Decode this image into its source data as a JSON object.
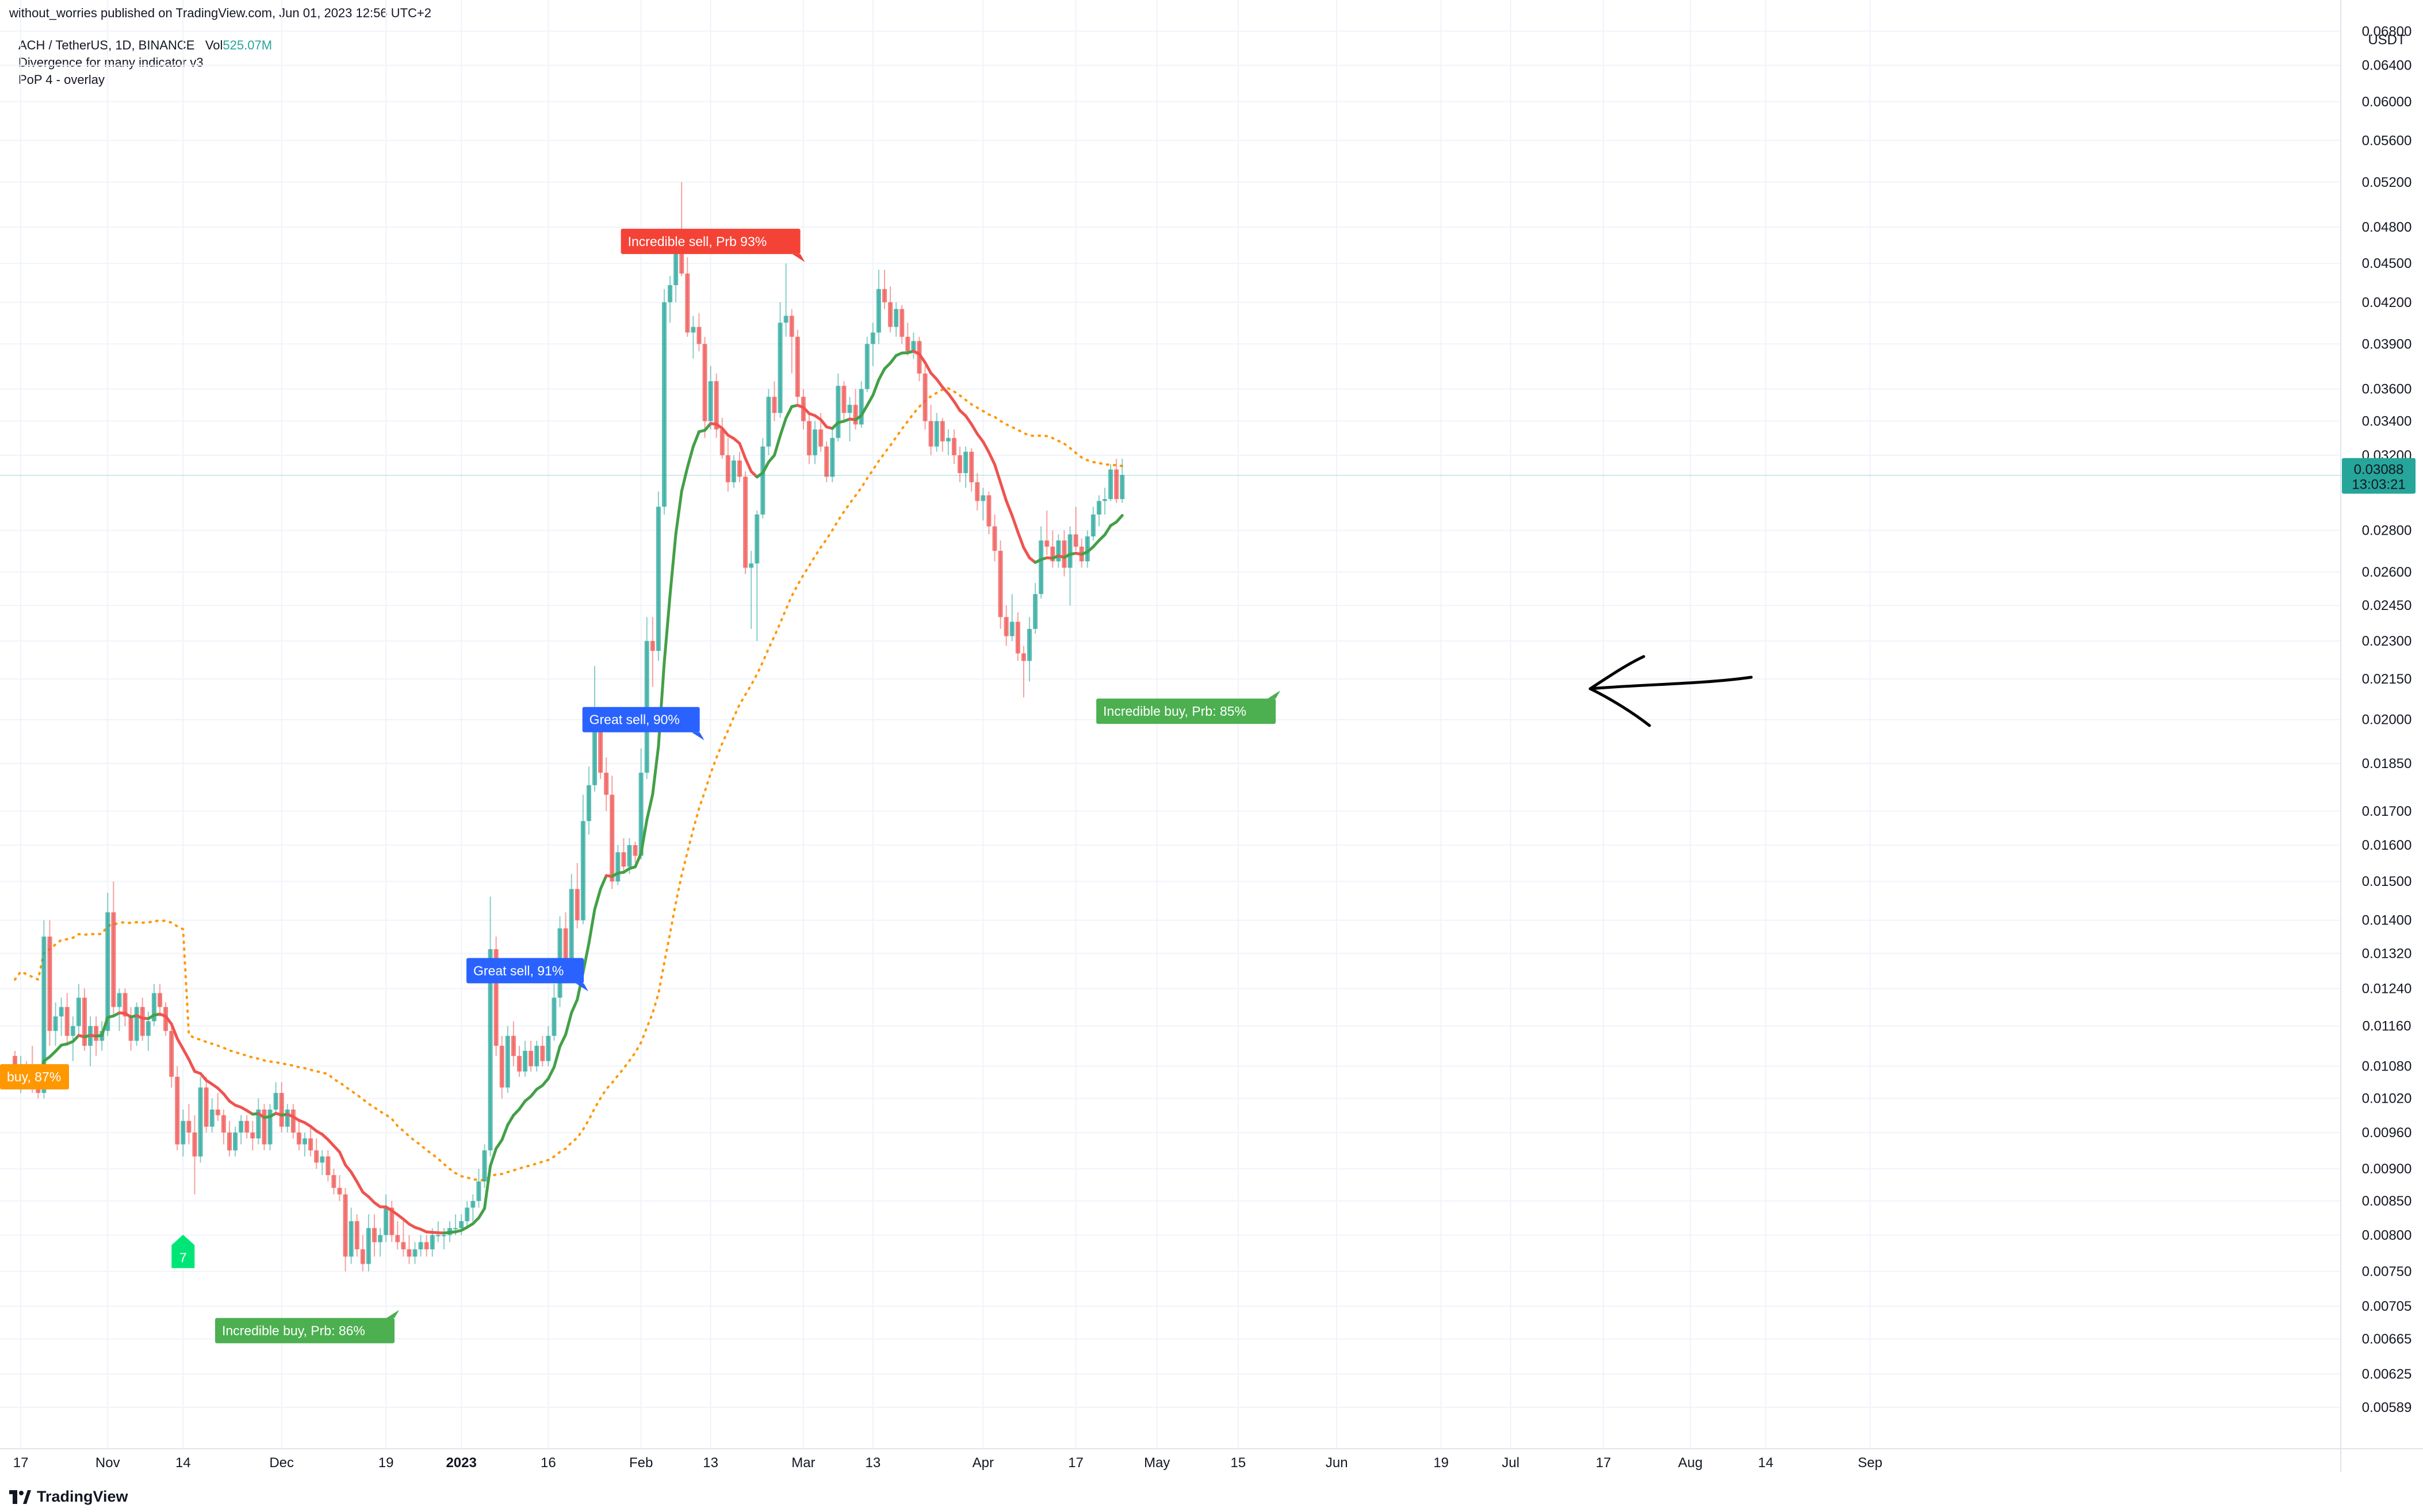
{
  "publisher_line": "without_worries published on TradingView.com, Jun 01, 2023 12:56 UTC+2",
  "legend": {
    "symbol": "ACH / TetherUS, 1D, BINANCE",
    "vol_label": "Vol",
    "vol_value": "525.07M",
    "indicator1": "Divergence for many indicator v3",
    "indicator2": "PoP 4 - overlay"
  },
  "footer": {
    "brand": "TradingView"
  },
  "colors": {
    "up": "#26a69a",
    "down": "#ef5350",
    "ema_up": "#43a047",
    "ema_down": "#ef5350",
    "sma": "#ff9800",
    "grid": "#f0f3fa",
    "axis_text": "#131722",
    "label_red": "#f44336",
    "label_blue": "#2962ff",
    "label_green": "#4caf50",
    "label_orange": "#ff9800"
  },
  "chart_data": {
    "type": "candlestick",
    "currency": "USDT",
    "scale": "log",
    "ylim": [
      0.0057,
      0.069
    ],
    "y_ticks": [
      "0.06800",
      "0.06400",
      "0.06000",
      "0.05600",
      "0.05200",
      "0.04800",
      "0.04500",
      "0.04200",
      "0.03900",
      "0.03600",
      "0.03400",
      "0.03200",
      "0.02800",
      "0.02600",
      "0.02450",
      "0.02300",
      "0.02150",
      "0.02000",
      "0.01850",
      "0.01700",
      "0.01600",
      "0.01500",
      "0.01400",
      "0.01320",
      "0.01240",
      "0.01160",
      "0.01080",
      "0.01020",
      "0.00960",
      "0.00900",
      "0.00850",
      "0.00800",
      "0.00750",
      "0.00705",
      "0.00665",
      "0.00625",
      "0.00589"
    ],
    "x_ticks": [
      {
        "label": "17",
        "day": 1
      },
      {
        "label": "Nov",
        "day": 16
      },
      {
        "label": "14",
        "day": 29
      },
      {
        "label": "Dec",
        "day": 46
      },
      {
        "label": "19",
        "day": 64
      },
      {
        "label": "2023",
        "day": 77,
        "bold": true
      },
      {
        "label": "16",
        "day": 92
      },
      {
        "label": "Feb",
        "day": 108
      },
      {
        "label": "13",
        "day": 120
      },
      {
        "label": "Mar",
        "day": 136
      },
      {
        "label": "13",
        "day": 148
      },
      {
        "label": "Apr",
        "day": 167
      },
      {
        "label": "17",
        "day": 183
      },
      {
        "label": "May",
        "day": 197
      },
      {
        "label": "15",
        "day": 211
      },
      {
        "label": "Jun",
        "day": 228
      },
      {
        "label": "19",
        "day": 246
      },
      {
        "label": "Jul",
        "day": 258
      },
      {
        "label": "17",
        "day": 274
      },
      {
        "label": "Aug",
        "day": 289
      },
      {
        "label": "14",
        "day": 302
      },
      {
        "label": "Sep",
        "day": 320
      }
    ],
    "price_tag": {
      "price": 0.03088,
      "label": "0.03088",
      "countdown": "13:03:21"
    },
    "candles": [
      [
        0.011,
        0.0111,
        0.0104,
        0.0105
      ],
      [
        0.0105,
        0.011,
        0.0103,
        0.0108
      ],
      [
        0.0108,
        0.0109,
        0.0104,
        0.0105
      ],
      [
        0.0105,
        0.0112,
        0.0103,
        0.0104
      ],
      [
        0.0104,
        0.0106,
        0.0102,
        0.0103
      ],
      [
        0.0103,
        0.014,
        0.0102,
        0.0136
      ],
      [
        0.0136,
        0.014,
        0.0112,
        0.0115
      ],
      [
        0.0115,
        0.0121,
        0.0112,
        0.0118
      ],
      [
        0.0118,
        0.0122,
        0.0114,
        0.012
      ],
      [
        0.012,
        0.0123,
        0.0112,
        0.0114
      ],
      [
        0.0114,
        0.0118,
        0.0109,
        0.0116
      ],
      [
        0.0116,
        0.0125,
        0.0114,
        0.0122
      ],
      [
        0.0122,
        0.0124,
        0.0111,
        0.0112
      ],
      [
        0.0112,
        0.0118,
        0.0108,
        0.0116
      ],
      [
        0.0116,
        0.0118,
        0.011,
        0.0113
      ],
      [
        0.0113,
        0.0117,
        0.0111,
        0.0115
      ],
      [
        0.0115,
        0.0147,
        0.0114,
        0.0142
      ],
      [
        0.0142,
        0.015,
        0.0118,
        0.012
      ],
      [
        0.012,
        0.0124,
        0.0115,
        0.0123
      ],
      [
        0.0123,
        0.0124,
        0.0116,
        0.0118
      ],
      [
        0.0118,
        0.012,
        0.0111,
        0.0113
      ],
      [
        0.0113,
        0.0121,
        0.0112,
        0.012
      ],
      [
        0.012,
        0.0122,
        0.0113,
        0.0114
      ],
      [
        0.0114,
        0.0119,
        0.0111,
        0.0117
      ],
      [
        0.0117,
        0.0125,
        0.0116,
        0.0123
      ],
      [
        0.0123,
        0.0125,
        0.0118,
        0.012
      ],
      [
        0.012,
        0.0121,
        0.0114,
        0.0115
      ],
      [
        0.0115,
        0.0116,
        0.0104,
        0.0106
      ],
      [
        0.0106,
        0.0108,
        0.0093,
        0.0094
      ],
      [
        0.0094,
        0.01,
        0.0092,
        0.0098
      ],
      [
        0.0098,
        0.0101,
        0.0094,
        0.0096
      ],
      [
        0.0096,
        0.0099,
        0.0086,
        0.0092
      ],
      [
        0.0092,
        0.0106,
        0.0091,
        0.0104
      ],
      [
        0.0104,
        0.0106,
        0.0096,
        0.0097
      ],
      [
        0.0097,
        0.0102,
        0.0096,
        0.01
      ],
      [
        0.01,
        0.0103,
        0.0098,
        0.0099
      ],
      [
        0.0099,
        0.01,
        0.0094,
        0.0096
      ],
      [
        0.0096,
        0.0098,
        0.0092,
        0.0093
      ],
      [
        0.0093,
        0.0097,
        0.0092,
        0.0096
      ],
      [
        0.0096,
        0.0099,
        0.0094,
        0.0098
      ],
      [
        0.0098,
        0.0099,
        0.0095,
        0.0096
      ],
      [
        0.0096,
        0.0098,
        0.0093,
        0.0095
      ],
      [
        0.0095,
        0.0102,
        0.0094,
        0.01
      ],
      [
        0.01,
        0.0101,
        0.0093,
        0.0094
      ],
      [
        0.0094,
        0.0101,
        0.0093,
        0.01
      ],
      [
        0.01,
        0.0105,
        0.0099,
        0.0103
      ],
      [
        0.0103,
        0.0105,
        0.0096,
        0.0097
      ],
      [
        0.0097,
        0.0101,
        0.0096,
        0.01
      ],
      [
        0.01,
        0.0101,
        0.0095,
        0.0096
      ],
      [
        0.0096,
        0.0098,
        0.0093,
        0.0094
      ],
      [
        0.0094,
        0.0096,
        0.0092,
        0.0095
      ],
      [
        0.0095,
        0.0097,
        0.0092,
        0.0093
      ],
      [
        0.0093,
        0.0095,
        0.009,
        0.0091
      ],
      [
        0.0091,
        0.0093,
        0.0089,
        0.0092
      ],
      [
        0.0092,
        0.0093,
        0.0088,
        0.0089
      ],
      [
        0.0089,
        0.009,
        0.0086,
        0.0087
      ],
      [
        0.0087,
        0.0089,
        0.0085,
        0.0086
      ],
      [
        0.0086,
        0.0087,
        0.0075,
        0.0077
      ],
      [
        0.0077,
        0.0084,
        0.0076,
        0.0082
      ],
      [
        0.0082,
        0.0083,
        0.0077,
        0.0078
      ],
      [
        0.0078,
        0.008,
        0.0075,
        0.0076
      ],
      [
        0.0076,
        0.0083,
        0.0075,
        0.0081
      ],
      [
        0.0081,
        0.0083,
        0.0077,
        0.0079
      ],
      [
        0.0079,
        0.0081,
        0.0077,
        0.008
      ],
      [
        0.008,
        0.0086,
        0.0079,
        0.0084
      ],
      [
        0.0084,
        0.0085,
        0.0079,
        0.008
      ],
      [
        0.008,
        0.0082,
        0.0078,
        0.0079
      ],
      [
        0.0079,
        0.0082,
        0.0077,
        0.0078
      ],
      [
        0.0078,
        0.008,
        0.0076,
        0.0077
      ],
      [
        0.0077,
        0.0079,
        0.0076,
        0.0078
      ],
      [
        0.0078,
        0.008,
        0.0077,
        0.0079
      ],
      [
        0.0079,
        0.008,
        0.0077,
        0.0078
      ],
      [
        0.0078,
        0.0081,
        0.0077,
        0.008
      ],
      [
        0.008,
        0.0082,
        0.0079,
        0.008
      ],
      [
        0.008,
        0.0081,
        0.0078,
        0.008
      ],
      [
        0.008,
        0.0082,
        0.0079,
        0.0081
      ],
      [
        0.0081,
        0.0083,
        0.008,
        0.0081
      ],
      [
        0.0081,
        0.0083,
        0.008,
        0.0082
      ],
      [
        0.0082,
        0.0085,
        0.0081,
        0.0084
      ],
      [
        0.0084,
        0.0086,
        0.0082,
        0.0085
      ],
      [
        0.0085,
        0.009,
        0.0084,
        0.0088
      ],
      [
        0.0088,
        0.0094,
        0.0087,
        0.0093
      ],
      [
        0.0093,
        0.0146,
        0.0092,
        0.0133
      ],
      [
        0.0133,
        0.0136,
        0.011,
        0.0112
      ],
      [
        0.0112,
        0.0114,
        0.0102,
        0.0104
      ],
      [
        0.0104,
        0.0116,
        0.0103,
        0.0114
      ],
      [
        0.0114,
        0.0117,
        0.0108,
        0.011
      ],
      [
        0.011,
        0.0112,
        0.0106,
        0.0107
      ],
      [
        0.0107,
        0.0113,
        0.0106,
        0.0111
      ],
      [
        0.0111,
        0.0113,
        0.0107,
        0.0108
      ],
      [
        0.0108,
        0.0113,
        0.0107,
        0.0112
      ],
      [
        0.0112,
        0.0114,
        0.0108,
        0.0109
      ],
      [
        0.0109,
        0.0116,
        0.0108,
        0.0114
      ],
      [
        0.0114,
        0.0125,
        0.0113,
        0.0122
      ],
      [
        0.0122,
        0.0141,
        0.012,
        0.0138
      ],
      [
        0.0138,
        0.0142,
        0.0127,
        0.013
      ],
      [
        0.013,
        0.0152,
        0.0129,
        0.0148
      ],
      [
        0.0148,
        0.0155,
        0.0138,
        0.014
      ],
      [
        0.014,
        0.0175,
        0.0139,
        0.0167
      ],
      [
        0.0167,
        0.0184,
        0.0163,
        0.0178
      ],
      [
        0.0178,
        0.022,
        0.0176,
        0.0197
      ],
      [
        0.0197,
        0.0199,
        0.018,
        0.0182
      ],
      [
        0.0182,
        0.0187,
        0.017,
        0.0175
      ],
      [
        0.0175,
        0.0181,
        0.0148,
        0.015
      ],
      [
        0.015,
        0.016,
        0.0149,
        0.0158
      ],
      [
        0.0158,
        0.0162,
        0.0152,
        0.0154
      ],
      [
        0.0154,
        0.0162,
        0.0152,
        0.016
      ],
      [
        0.016,
        0.0161,
        0.0155,
        0.0157
      ],
      [
        0.0157,
        0.019,
        0.0156,
        0.0182
      ],
      [
        0.0182,
        0.024,
        0.018,
        0.023
      ],
      [
        0.023,
        0.024,
        0.0212,
        0.0226
      ],
      [
        0.0226,
        0.03,
        0.0222,
        0.0292
      ],
      [
        0.0292,
        0.043,
        0.0288,
        0.042
      ],
      [
        0.042,
        0.044,
        0.0405,
        0.0433
      ],
      [
        0.0433,
        0.047,
        0.042,
        0.0465
      ],
      [
        0.0465,
        0.052,
        0.044,
        0.0442
      ],
      [
        0.0442,
        0.0455,
        0.0395,
        0.0398
      ],
      [
        0.0398,
        0.041,
        0.038,
        0.0402
      ],
      [
        0.0402,
        0.0412,
        0.0385,
        0.039
      ],
      [
        0.039,
        0.0395,
        0.033,
        0.034
      ],
      [
        0.034,
        0.0375,
        0.0335,
        0.0365
      ],
      [
        0.0365,
        0.037,
        0.033,
        0.0335
      ],
      [
        0.0335,
        0.0342,
        0.0318,
        0.032
      ],
      [
        0.032,
        0.033,
        0.03,
        0.0305
      ],
      [
        0.0305,
        0.032,
        0.0302,
        0.0317
      ],
      [
        0.0317,
        0.0322,
        0.0305,
        0.0308
      ],
      [
        0.0308,
        0.0311,
        0.0259,
        0.0262
      ],
      [
        0.0262,
        0.027,
        0.0235,
        0.0264
      ],
      [
        0.0264,
        0.029,
        0.023,
        0.0288
      ],
      [
        0.0288,
        0.033,
        0.0286,
        0.0325
      ],
      [
        0.0325,
        0.036,
        0.032,
        0.0355
      ],
      [
        0.0355,
        0.0365,
        0.034,
        0.0345
      ],
      [
        0.0345,
        0.042,
        0.0342,
        0.0405
      ],
      [
        0.0405,
        0.045,
        0.0395,
        0.041
      ],
      [
        0.041,
        0.0415,
        0.037,
        0.0395
      ],
      [
        0.0395,
        0.04,
        0.035,
        0.0355
      ],
      [
        0.0355,
        0.036,
        0.0335,
        0.034
      ],
      [
        0.034,
        0.0345,
        0.0315,
        0.032
      ],
      [
        0.032,
        0.034,
        0.0315,
        0.0335
      ],
      [
        0.0335,
        0.0345,
        0.0322,
        0.0325
      ],
      [
        0.0325,
        0.0328,
        0.0305,
        0.0308
      ],
      [
        0.0308,
        0.0335,
        0.0305,
        0.033
      ],
      [
        0.033,
        0.037,
        0.0328,
        0.0362
      ],
      [
        0.0362,
        0.0365,
        0.034,
        0.0345
      ],
      [
        0.0345,
        0.0355,
        0.0328,
        0.035
      ],
      [
        0.035,
        0.036,
        0.0335,
        0.0338
      ],
      [
        0.0338,
        0.0365,
        0.0336,
        0.036
      ],
      [
        0.036,
        0.0395,
        0.0358,
        0.039
      ],
      [
        0.039,
        0.0405,
        0.0375,
        0.0398
      ],
      [
        0.0398,
        0.0445,
        0.039,
        0.043
      ],
      [
        0.043,
        0.0445,
        0.0415,
        0.042
      ],
      [
        0.042,
        0.0432,
        0.0398,
        0.0402
      ],
      [
        0.0402,
        0.042,
        0.0395,
        0.0415
      ],
      [
        0.0415,
        0.0418,
        0.039,
        0.0395
      ],
      [
        0.0395,
        0.0405,
        0.0382,
        0.0385
      ],
      [
        0.0385,
        0.0398,
        0.038,
        0.0392
      ],
      [
        0.0392,
        0.0395,
        0.0365,
        0.037
      ],
      [
        0.037,
        0.0375,
        0.0335,
        0.034
      ],
      [
        0.034,
        0.035,
        0.032,
        0.0325
      ],
      [
        0.0325,
        0.0345,
        0.0322,
        0.034
      ],
      [
        0.034,
        0.0342,
        0.0322,
        0.0328
      ],
      [
        0.0328,
        0.0335,
        0.032,
        0.033
      ],
      [
        0.033,
        0.0335,
        0.0315,
        0.032
      ],
      [
        0.032,
        0.0325,
        0.0305,
        0.031
      ],
      [
        0.031,
        0.0325,
        0.0302,
        0.0322
      ],
      [
        0.0322,
        0.0324,
        0.03,
        0.0305
      ],
      [
        0.0305,
        0.031,
        0.029,
        0.0295
      ],
      [
        0.0295,
        0.0302,
        0.0285,
        0.0298
      ],
      [
        0.0298,
        0.03,
        0.0278,
        0.0282
      ],
      [
        0.0282,
        0.0288,
        0.0265,
        0.027
      ],
      [
        0.027,
        0.0275,
        0.0235,
        0.024
      ],
      [
        0.024,
        0.0245,
        0.0228,
        0.0232
      ],
      [
        0.0232,
        0.025,
        0.023,
        0.0238
      ],
      [
        0.0238,
        0.0242,
        0.0222,
        0.0225
      ],
      [
        0.0225,
        0.0228,
        0.0208,
        0.0222
      ],
      [
        0.0222,
        0.024,
        0.0214,
        0.0235
      ],
      [
        0.0235,
        0.0255,
        0.0233,
        0.025
      ],
      [
        0.025,
        0.0282,
        0.0248,
        0.0275
      ],
      [
        0.0275,
        0.029,
        0.0268,
        0.0272
      ],
      [
        0.0272,
        0.028,
        0.0262,
        0.0265
      ],
      [
        0.0265,
        0.0278,
        0.0262,
        0.0275
      ],
      [
        0.0275,
        0.028,
        0.0258,
        0.0262
      ],
      [
        0.0262,
        0.0282,
        0.0245,
        0.0278
      ],
      [
        0.0278,
        0.0292,
        0.027,
        0.0272
      ],
      [
        0.0272,
        0.0276,
        0.0262,
        0.0265
      ],
      [
        0.0265,
        0.028,
        0.0262,
        0.0277
      ],
      [
        0.0277,
        0.0292,
        0.0275,
        0.0288
      ],
      [
        0.0288,
        0.0298,
        0.0282,
        0.0295
      ],
      [
        0.0295,
        0.0302,
        0.0288,
        0.0296
      ],
      [
        0.0296,
        0.0315,
        0.0295,
        0.0312
      ],
      [
        0.0312,
        0.0318,
        0.0294,
        0.0296
      ],
      [
        0.0296,
        0.0318,
        0.0294,
        0.0309
      ]
    ],
    "signals": [
      {
        "text": "Incredible sell, Prb 93%",
        "color": "red",
        "day": 120,
        "price": 0.0468,
        "pointer": "down-right"
      },
      {
        "text": "Great sell, 90%",
        "color": "blue",
        "day": 108,
        "price": 0.02,
        "pointer": "down-right"
      },
      {
        "text": "Great sell, 91%",
        "color": "blue",
        "day": 88,
        "price": 0.0128,
        "pointer": "down-right"
      },
      {
        "text": "Incredible buy, Prb: 85%",
        "color": "green",
        "day": 202,
        "price": 0.0203,
        "pointer": "up-right"
      },
      {
        "text": "Incredible buy, Prb: 86%",
        "color": "green",
        "day": 50,
        "price": 0.00675,
        "pointer": "up-right"
      },
      {
        "text": "buy, 87%",
        "color": "orange",
        "day": 0,
        "price": 0.0106,
        "pointer": "none"
      }
    ],
    "marker_7": {
      "text": "7",
      "day": 29,
      "price": 0.0077
    }
  }
}
